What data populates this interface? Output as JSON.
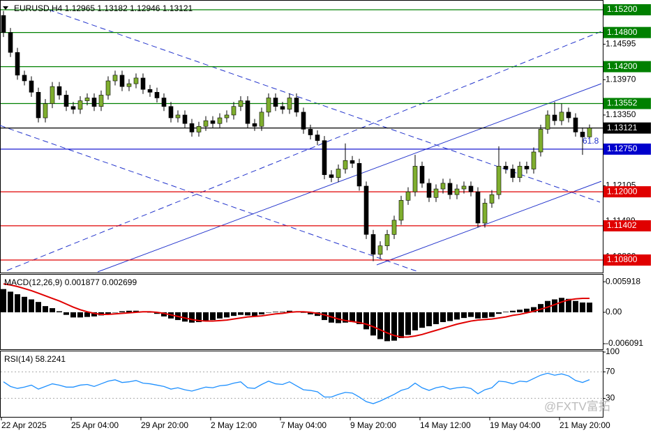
{
  "watermark": "@FXTV富拓",
  "time_axis": [
    "22 Apr 2025",
    "25 Apr 04:00",
    "29 Apr 20:00",
    "2 May 12:00",
    "7 May 04:00",
    "9 May 20:00",
    "14 May 12:00",
    "19 May 04:00",
    "21 May 20:00"
  ],
  "chart_data": [
    {
      "type": "candlestick",
      "title": "EURUSD,H4  1.12965 1.13182 1.12946 1.13121",
      "annotation": "61.8",
      "up_color": "#7fae2e",
      "down_color": "#000000",
      "wick_color": "#000000",
      "ylim": [
        1.10592,
        1.15335
      ],
      "yticks": [
        {
          "value": 1.14595,
          "label": "1.14595"
        },
        {
          "value": 1.1397,
          "label": "1.13970"
        },
        {
          "value": 1.1335,
          "label": "1.13350"
        },
        {
          "value": 1.12105,
          "label": "1.12105"
        },
        {
          "value": 1.1148,
          "label": "1.11480"
        },
        {
          "value": 1.1086,
          "label": "1.10860"
        }
      ],
      "levels": [
        {
          "value": 1.152,
          "label": "1.15200",
          "color": "#008000"
        },
        {
          "value": 1.148,
          "label": "1.14800",
          "color": "#008000"
        },
        {
          "value": 1.142,
          "label": "1.14200",
          "color": "#008000"
        },
        {
          "value": 1.13552,
          "label": "1.13552",
          "color": "#008000"
        },
        {
          "value": 1.13121,
          "label": "1.13121",
          "color": "#000000"
        },
        {
          "value": 1.1275,
          "label": "1.12750",
          "color": "#0000cc"
        },
        {
          "value": 1.12,
          "label": "1.12000",
          "color": "#e00000"
        },
        {
          "value": 1.11402,
          "label": "1.11402",
          "color": "#e00000"
        },
        {
          "value": 1.108,
          "label": "1.10800",
          "color": "#e00000"
        }
      ],
      "candles": [
        [
          1.151,
          1.1518,
          1.1472,
          1.148
        ],
        [
          1.148,
          1.1488,
          1.1437,
          1.1445
        ],
        [
          1.1445,
          1.1453,
          1.1397,
          1.1405
        ],
        [
          1.1405,
          1.1413,
          1.1387,
          1.1395
        ],
        [
          1.1395,
          1.1403,
          1.1367,
          1.1375
        ],
        [
          1.1375,
          1.1383,
          1.1322,
          1.133
        ],
        [
          1.133,
          1.1363,
          1.1322,
          1.1355
        ],
        [
          1.1355,
          1.1393,
          1.1347,
          1.1385
        ],
        [
          1.1385,
          1.1393,
          1.1362,
          1.137
        ],
        [
          1.137,
          1.1378,
          1.1342,
          1.135
        ],
        [
          1.135,
          1.1358,
          1.1337,
          1.1345
        ],
        [
          1.1345,
          1.1368,
          1.1337,
          1.136
        ],
        [
          1.136,
          1.1373,
          1.1352,
          1.1365
        ],
        [
          1.1365,
          1.1373,
          1.1342,
          1.135
        ],
        [
          1.135,
          1.1378,
          1.1342,
          1.137
        ],
        [
          1.137,
          1.1403,
          1.1362,
          1.1395
        ],
        [
          1.1395,
          1.1413,
          1.1387,
          1.1405
        ],
        [
          1.1405,
          1.1413,
          1.1377,
          1.1385
        ],
        [
          1.1385,
          1.1398,
          1.1377,
          1.139
        ],
        [
          1.139,
          1.1408,
          1.1382,
          1.14
        ],
        [
          1.14,
          1.1408,
          1.1372,
          1.138
        ],
        [
          1.138,
          1.1388,
          1.1367,
          1.1375
        ],
        [
          1.1375,
          1.1383,
          1.1357,
          1.1365
        ],
        [
          1.1365,
          1.1373,
          1.1342,
          1.135
        ],
        [
          1.135,
          1.1358,
          1.1322,
          1.133
        ],
        [
          1.133,
          1.1343,
          1.1322,
          1.1335
        ],
        [
          1.1335,
          1.1343,
          1.1312,
          1.132
        ],
        [
          1.132,
          1.1328,
          1.1297,
          1.1305
        ],
        [
          1.1305,
          1.1323,
          1.1297,
          1.1315
        ],
        [
          1.1315,
          1.1333,
          1.1307,
          1.1325
        ],
        [
          1.1325,
          1.1333,
          1.1312,
          1.132
        ],
        [
          1.132,
          1.1338,
          1.1312,
          1.133
        ],
        [
          1.133,
          1.1343,
          1.1322,
          1.1335
        ],
        [
          1.1335,
          1.1358,
          1.1327,
          1.135
        ],
        [
          1.135,
          1.1368,
          1.1342,
          1.136
        ],
        [
          1.136,
          1.1368,
          1.1312,
          1.132
        ],
        [
          1.132,
          1.1328,
          1.1307,
          1.1315
        ],
        [
          1.1315,
          1.1348,
          1.1307,
          1.134
        ],
        [
          1.134,
          1.1373,
          1.1332,
          1.1365
        ],
        [
          1.1365,
          1.1373,
          1.1342,
          1.135
        ],
        [
          1.135,
          1.1358,
          1.1337,
          1.1345
        ],
        [
          1.1345,
          1.1373,
          1.1337,
          1.1365
        ],
        [
          1.1365,
          1.1373,
          1.1332,
          1.134
        ],
        [
          1.134,
          1.1348,
          1.1302,
          1.131
        ],
        [
          1.131,
          1.1318,
          1.1292,
          1.13
        ],
        [
          1.13,
          1.1308,
          1.1282,
          1.129
        ],
        [
          1.129,
          1.1298,
          1.1222,
          1.123
        ],
        [
          1.123,
          1.1238,
          1.1217,
          1.1225
        ],
        [
          1.1225,
          1.1248,
          1.1217,
          1.124
        ],
        [
          1.124,
          1.1285,
          1.1232,
          1.1255
        ],
        [
          1.1255,
          1.1263,
          1.1242,
          1.125
        ],
        [
          1.125,
          1.1258,
          1.1202,
          1.121
        ],
        [
          1.121,
          1.1218,
          1.1117,
          1.1125
        ],
        [
          1.1125,
          1.1133,
          1.1078,
          1.109
        ],
        [
          1.109,
          1.1113,
          1.1082,
          1.1105
        ],
        [
          1.1105,
          1.1133,
          1.1097,
          1.1125
        ],
        [
          1.1125,
          1.1158,
          1.1117,
          1.115
        ],
        [
          1.115,
          1.1193,
          1.1142,
          1.1185
        ],
        [
          1.1185,
          1.1208,
          1.1177,
          1.12
        ],
        [
          1.12,
          1.1265,
          1.1192,
          1.1245
        ],
        [
          1.1245,
          1.1253,
          1.1207,
          1.1215
        ],
        [
          1.1215,
          1.1223,
          1.1182,
          1.119
        ],
        [
          1.119,
          1.1213,
          1.1182,
          1.1205
        ],
        [
          1.1205,
          1.1223,
          1.1197,
          1.1215
        ],
        [
          1.1215,
          1.1223,
          1.1187,
          1.1195
        ],
        [
          1.1195,
          1.1213,
          1.1187,
          1.1205
        ],
        [
          1.1205,
          1.1218,
          1.1197,
          1.121
        ],
        [
          1.121,
          1.1218,
          1.1192,
          1.12
        ],
        [
          1.12,
          1.1208,
          1.1137,
          1.1145
        ],
        [
          1.1145,
          1.1188,
          1.1137,
          1.118
        ],
        [
          1.118,
          1.1203,
          1.1172,
          1.1195
        ],
        [
          1.1195,
          1.128,
          1.1187,
          1.1245
        ],
        [
          1.1245,
          1.1253,
          1.1232,
          1.124
        ],
        [
          1.124,
          1.1248,
          1.1217,
          1.1225
        ],
        [
          1.1225,
          1.1253,
          1.1217,
          1.1245
        ],
        [
          1.1245,
          1.1253,
          1.1232,
          1.124
        ],
        [
          1.124,
          1.1278,
          1.1232,
          1.127
        ],
        [
          1.127,
          1.1318,
          1.1262,
          1.131
        ],
        [
          1.131,
          1.1343,
          1.1302,
          1.1335
        ],
        [
          1.1335,
          1.1358,
          1.1317,
          1.1325
        ],
        [
          1.1325,
          1.1355,
          1.1317,
          1.134
        ],
        [
          1.134,
          1.1348,
          1.1322,
          1.133
        ],
        [
          1.133,
          1.1338,
          1.1297,
          1.1305
        ],
        [
          1.1305,
          1.1313,
          1.1265,
          1.12965
        ],
        [
          1.12965,
          1.13182,
          1.12946,
          1.13121
        ]
      ]
    },
    {
      "type": "macd",
      "title": "MACD(12,26,9) 0.001877 0.002699",
      "histogram_color": "#000000",
      "signal_color": "#e00000",
      "ylim": [
        -0.00703,
        0.00716
      ],
      "yticks": [
        0.005918,
        {
          "value": 0,
          "label": "0.00"
        },
        -0.006091
      ],
      "histogram": [
        0.0045,
        0.004,
        0.0035,
        0.003,
        0.0025,
        0.002,
        0.0012,
        0.0008,
        0.0002,
        -0.0005,
        -0.001,
        -0.001,
        -0.0009,
        -0.0008,
        -0.0006,
        -0.0003,
        0,
        0.0002,
        0.0003,
        0.0003,
        0.0002,
        0,
        -0.0003,
        -0.0008,
        -0.0012,
        -0.0015,
        -0.0018,
        -0.002,
        -0.0019,
        -0.0017,
        -0.0015,
        -0.0012,
        -0.001,
        -0.0007,
        -0.0005,
        -0.0006,
        -0.0007,
        -0.0004,
        0,
        0.0001,
        0.0001,
        0.0003,
        0.0002,
        -0.0001,
        -0.0004,
        -0.0007,
        -0.0015,
        -0.002,
        -0.0021,
        -0.002,
        -0.0019,
        -0.0023,
        -0.0033,
        -0.0045,
        -0.0052,
        -0.0056,
        -0.0055,
        -0.005,
        -0.0044,
        -0.0035,
        -0.003,
        -0.0027,
        -0.0023,
        -0.0019,
        -0.0017,
        -0.0014,
        -0.0011,
        -0.0009,
        -0.0012,
        -0.0011,
        -0.0009,
        -0.0003,
        0.0001,
        0.0003,
        0.0005,
        0.0007,
        0.001,
        0.0016,
        0.0022,
        0.0025,
        0.0028,
        0.0026,
        0.0022,
        0.0019,
        0.001877
      ],
      "signal": [
        0.0055,
        0.0053,
        0.005,
        0.0046,
        0.0042,
        0.0037,
        0.0032,
        0.0027,
        0.0022,
        0.0016,
        0.001,
        0.0005,
        0.0001,
        -0.0002,
        -0.0004,
        -0.0004,
        -0.0003,
        -0.0002,
        -0.0001,
        0,
        0.0001,
        0.0001,
        0,
        -0.0002,
        -0.0005,
        -0.0008,
        -0.0011,
        -0.0014,
        -0.0016,
        -0.0017,
        -0.0017,
        -0.0016,
        -0.0015,
        -0.0013,
        -0.0011,
        -0.0009,
        -0.0008,
        -0.0007,
        -0.0005,
        -0.0003,
        -0.0002,
        0,
        0.0001,
        0.0001,
        0,
        -0.0002,
        -0.0005,
        -0.0009,
        -0.0013,
        -0.0016,
        -0.0018,
        -0.002,
        -0.0023,
        -0.0028,
        -0.0034,
        -0.004,
        -0.0045,
        -0.0048,
        -0.0048,
        -0.0046,
        -0.0043,
        -0.0039,
        -0.0035,
        -0.0031,
        -0.0027,
        -0.0023,
        -0.002,
        -0.0017,
        -0.0015,
        -0.0014,
        -0.0013,
        -0.0011,
        -0.0009,
        -0.0006,
        -0.0004,
        -0.0001,
        0.0002,
        0.0006,
        0.001,
        0.0015,
        0.002,
        0.0024,
        0.0026,
        0.0027,
        0.002699
      ]
    },
    {
      "type": "line",
      "title": "RSI(14) 58.2241",
      "color": "#1e90ff",
      "ylim": [
        2,
        100
      ],
      "yticks": [
        100,
        70,
        30
      ],
      "levels": [
        70,
        30
      ],
      "values": [
        55,
        48,
        45,
        47,
        50,
        44,
        48,
        52,
        50,
        47,
        47,
        50,
        51,
        48,
        52,
        56,
        58,
        54,
        55,
        57,
        53,
        52,
        50,
        48,
        44,
        46,
        43,
        41,
        44,
        47,
        46,
        49,
        50,
        53,
        55,
        46,
        45,
        51,
        56,
        52,
        51,
        55,
        49,
        43,
        42,
        40,
        32,
        32,
        36,
        39,
        38,
        32,
        25,
        22,
        26,
        31,
        36,
        42,
        45,
        53,
        46,
        42,
        46,
        48,
        44,
        46,
        47,
        45,
        37,
        43,
        46,
        56,
        55,
        52,
        56,
        55,
        60,
        65,
        68,
        65,
        67,
        64,
        57,
        54,
        58.2241
      ]
    }
  ]
}
